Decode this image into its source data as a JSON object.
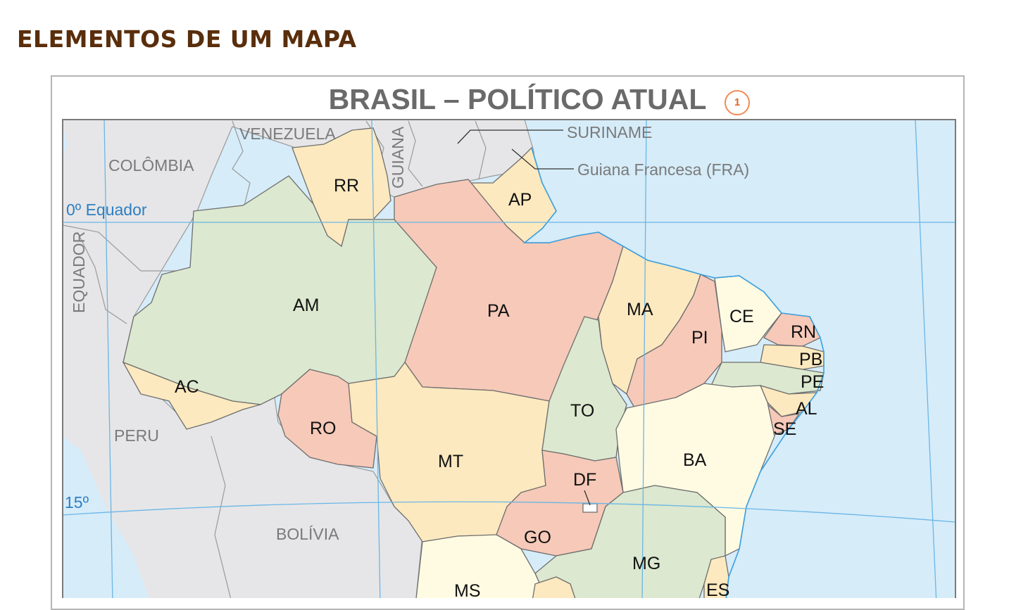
{
  "heading": "ELEMENTOS DE UM MAPA",
  "map": {
    "title": "BRASIL – POLÍTICO ATUAL",
    "badge": "1",
    "states": {
      "RR": "RR",
      "AP": "AP",
      "AM": "AM",
      "PA": "PA",
      "MA": "MA",
      "CE": "CE",
      "RN": "RN",
      "PB": "PB",
      "PE": "PE",
      "AL": "AL",
      "SE": "SE",
      "PI": "PI",
      "AC": "AC",
      "RO": "RO",
      "TO": "TO",
      "MT": "MT",
      "BA": "BA",
      "DF": "DF",
      "GO": "GO",
      "MG": "MG",
      "MS": "MS",
      "ES": "ES"
    },
    "countries": {
      "venezuela": "VENEZUELA",
      "guiana": "GUIANA",
      "suriname": "SURINAME",
      "guiana_francesa": "Guiana Francesa (FRA)",
      "colombia": "COLÔMBIA",
      "equador": "EQUADOR",
      "peru": "PERU",
      "bolivia": "BOLÍVIA"
    },
    "coords": {
      "equator": "0º Equador",
      "lat15": "15º"
    },
    "colors": {
      "ocean": "#d6ecf9",
      "neighbor": "#e6e6e8",
      "yellow": "#fde9bf",
      "pink": "#f6c9b8",
      "green": "#dce8cf",
      "cream": "#fffbe3",
      "border": "#6e6e6e",
      "grid": "#6ab6e6",
      "heading": "#5a2e0c"
    }
  }
}
